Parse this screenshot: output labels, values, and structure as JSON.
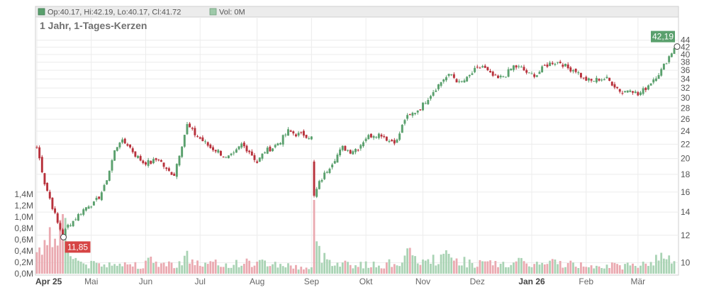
{
  "header": {
    "ohlc_text": "Op:40.17, Hi:42.19, Lo:40.17, Cl:41.72",
    "vol_text": "Vol: 0M"
  },
  "chart_data": {
    "type": "candlestick",
    "title": "1 Jahr, 1-Tages-Kerzen",
    "x_labels": [
      "Apr 25",
      "Mai",
      "Jun",
      "Jul",
      "Aug",
      "Sep",
      "Okt",
      "Nov",
      "Dez",
      "Jan 26",
      "Feb",
      "Mär"
    ],
    "x_labels_bold": [
      "Apr 25",
      "Jan 26"
    ],
    "y_axis": {
      "scale": "log",
      "range": [
        9.2,
        46.5
      ],
      "ticks": [
        10,
        12,
        14,
        16,
        18,
        20,
        22,
        24,
        26,
        28,
        30,
        32,
        34,
        36,
        38,
        40,
        42,
        44
      ]
    },
    "volume_axis": {
      "range": [
        0,
        1.4
      ],
      "unit": "M",
      "ticks": [
        "0,0M",
        "0,2M",
        "0,4M",
        "0,6M",
        "0,8M",
        "1,0M",
        "1,2M",
        "1,4M"
      ]
    },
    "callouts": {
      "last": {
        "label": "42,19",
        "value": 42.19,
        "color": "#5aa06d"
      },
      "low": {
        "label": "11,85",
        "value": 11.85,
        "color": "#d64545"
      }
    },
    "anchors_close": [
      [
        0,
        21.5
      ],
      [
        3,
        17
      ],
      [
        6,
        14.5
      ],
      [
        8,
        13
      ],
      [
        10,
        12
      ],
      [
        12,
        12.8
      ],
      [
        14,
        13.2
      ],
      [
        17,
        14
      ],
      [
        20,
        14.7
      ],
      [
        22,
        14.8
      ],
      [
        24,
        15.5
      ],
      [
        26,
        16.5
      ],
      [
        28,
        18.5
      ],
      [
        30,
        21
      ],
      [
        32,
        22.5
      ],
      [
        35,
        22
      ],
      [
        38,
        20.5
      ],
      [
        41,
        19.5
      ],
      [
        44,
        19.5
      ],
      [
        47,
        20
      ],
      [
        50,
        18.5
      ],
      [
        53,
        18
      ],
      [
        56,
        22
      ],
      [
        58,
        25
      ],
      [
        61,
        23.5
      ],
      [
        64,
        22.5
      ],
      [
        67,
        21.5
      ],
      [
        70,
        21
      ],
      [
        73,
        20
      ],
      [
        76,
        20.5
      ],
      [
        79,
        22
      ],
      [
        82,
        21
      ],
      [
        85,
        19.5
      ],
      [
        88,
        21
      ],
      [
        91,
        21.5
      ],
      [
        94,
        22.5
      ],
      [
        97,
        24
      ],
      [
        100,
        23.5
      ],
      [
        103,
        23.5
      ],
      [
        106,
        23
      ],
      [
        107,
        15.5
      ],
      [
        109,
        17
      ],
      [
        112,
        18.5
      ],
      [
        115,
        20
      ],
      [
        118,
        21.5
      ],
      [
        121,
        21
      ],
      [
        124,
        21.5
      ],
      [
        127,
        23
      ],
      [
        130,
        23.5
      ],
      [
        133,
        23.5
      ],
      [
        136,
        22.5
      ],
      [
        139,
        22.5
      ],
      [
        142,
        26
      ],
      [
        145,
        27
      ],
      [
        148,
        28
      ],
      [
        151,
        30
      ],
      [
        154,
        32
      ],
      [
        157,
        34
      ],
      [
        160,
        35
      ],
      [
        163,
        33
      ],
      [
        166,
        34
      ],
      [
        169,
        36
      ],
      [
        172,
        37
      ],
      [
        175,
        35
      ],
      [
        178,
        34
      ],
      [
        181,
        35
      ],
      [
        184,
        37
      ],
      [
        187,
        36.5
      ],
      [
        190,
        35
      ],
      [
        193,
        35
      ],
      [
        196,
        37
      ],
      [
        199,
        38
      ],
      [
        202,
        38
      ],
      [
        205,
        36.5
      ],
      [
        208,
        36
      ],
      [
        211,
        34
      ],
      [
        214,
        33.5
      ],
      [
        217,
        34
      ],
      [
        220,
        34
      ],
      [
        223,
        32.5
      ],
      [
        226,
        31
      ],
      [
        229,
        32
      ],
      [
        232,
        30.5
      ],
      [
        235,
        32
      ],
      [
        238,
        34
      ],
      [
        241,
        36
      ],
      [
        244,
        39.5
      ],
      [
        246,
        41.72
      ]
    ],
    "anchors_volume": [
      [
        0,
        0.5
      ],
      [
        3,
        0.55
      ],
      [
        6,
        0.7
      ],
      [
        8,
        0.75
      ],
      [
        10,
        1.1
      ],
      [
        12,
        0.5
      ],
      [
        14,
        0.3
      ],
      [
        17,
        0.2
      ],
      [
        20,
        0.15
      ],
      [
        23,
        0.18
      ],
      [
        26,
        0.14
      ],
      [
        28,
        0.2
      ],
      [
        30,
        0.25
      ],
      [
        33,
        0.15
      ],
      [
        36,
        0.18
      ],
      [
        40,
        0.15
      ],
      [
        44,
        0.22
      ],
      [
        48,
        0.18
      ],
      [
        52,
        0.16
      ],
      [
        55,
        0.2
      ],
      [
        58,
        0.3
      ],
      [
        61,
        0.2
      ],
      [
        64,
        0.15
      ],
      [
        68,
        0.18
      ],
      [
        72,
        0.15
      ],
      [
        76,
        0.17
      ],
      [
        80,
        0.2
      ],
      [
        84,
        0.18
      ],
      [
        88,
        0.2
      ],
      [
        92,
        0.17
      ],
      [
        96,
        0.15
      ],
      [
        100,
        0.12
      ],
      [
        104,
        0.1
      ],
      [
        106,
        0.1
      ],
      [
        107,
        1.3
      ],
      [
        108,
        0.45
      ],
      [
        110,
        0.3
      ],
      [
        113,
        0.25
      ],
      [
        116,
        0.2
      ],
      [
        120,
        0.18
      ],
      [
        124,
        0.15
      ],
      [
        128,
        0.16
      ],
      [
        132,
        0.14
      ],
      [
        136,
        0.18
      ],
      [
        140,
        0.2
      ],
      [
        143,
        0.35
      ],
      [
        146,
        0.25
      ],
      [
        150,
        0.2
      ],
      [
        154,
        0.25
      ],
      [
        158,
        0.3
      ],
      [
        162,
        0.25
      ],
      [
        166,
        0.2
      ],
      [
        170,
        0.18
      ],
      [
        175,
        0.17
      ],
      [
        180,
        0.16
      ],
      [
        185,
        0.2
      ],
      [
        190,
        0.18
      ],
      [
        195,
        0.16
      ],
      [
        200,
        0.2
      ],
      [
        205,
        0.17
      ],
      [
        210,
        0.15
      ],
      [
        215,
        0.16
      ],
      [
        220,
        0.15
      ],
      [
        225,
        0.13
      ],
      [
        230,
        0.15
      ],
      [
        235,
        0.2
      ],
      [
        240,
        0.25
      ],
      [
        244,
        0.35
      ],
      [
        246,
        0.2
      ]
    ]
  }
}
